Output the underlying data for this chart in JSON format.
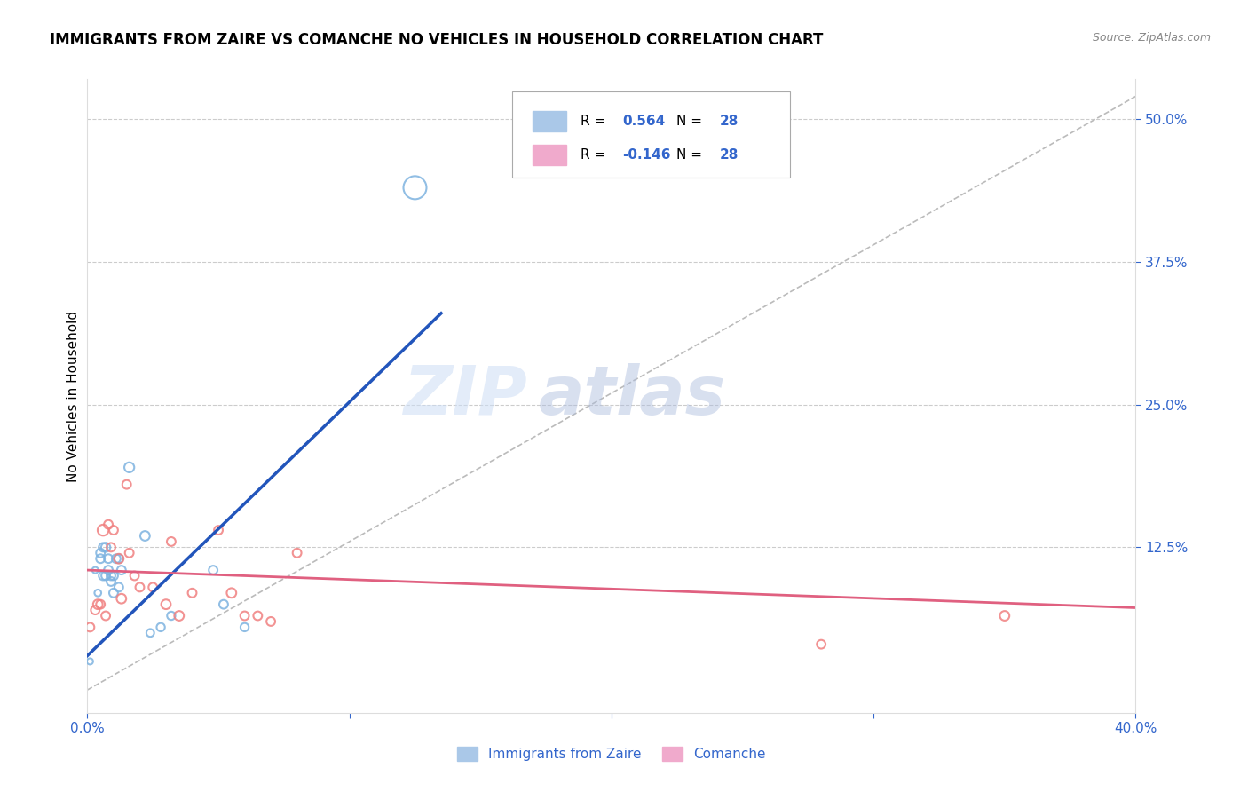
{
  "title": "IMMIGRANTS FROM ZAIRE VS COMANCHE NO VEHICLES IN HOUSEHOLD CORRELATION CHART",
  "source": "Source: ZipAtlas.com",
  "ylabel": "No Vehicles in Household",
  "ytick_labels": [
    "12.5%",
    "25.0%",
    "37.5%",
    "50.0%"
  ],
  "ytick_vals": [
    0.125,
    0.25,
    0.375,
    0.5
  ],
  "xrange": [
    0.0,
    0.4
  ],
  "yrange": [
    -0.02,
    0.535
  ],
  "legend_label1": "Immigrants from Zaire",
  "legend_label2": "Comanche",
  "blue_scatter_color": "#7EB3E0",
  "pink_scatter_color": "#F08080",
  "blue_line_color": "#2255BB",
  "pink_line_color": "#E06080",
  "grid_color": "#CCCCCC",
  "diag_color": "#BBBBBB",
  "blue_scatter_x": [
    0.001,
    0.003,
    0.004,
    0.005,
    0.005,
    0.006,
    0.006,
    0.007,
    0.007,
    0.008,
    0.008,
    0.009,
    0.009,
    0.01,
    0.01,
    0.011,
    0.012,
    0.012,
    0.013,
    0.016,
    0.022,
    0.024,
    0.028,
    0.032,
    0.048,
    0.052,
    0.06,
    0.125
  ],
  "blue_scatter_y": [
    0.025,
    0.105,
    0.085,
    0.12,
    0.115,
    0.125,
    0.1,
    0.125,
    0.1,
    0.115,
    0.105,
    0.1,
    0.095,
    0.085,
    0.1,
    0.115,
    0.115,
    0.09,
    0.105,
    0.195,
    0.135,
    0.05,
    0.055,
    0.065,
    0.105,
    0.075,
    0.055,
    0.44
  ],
  "blue_scatter_sizes": [
    25,
    25,
    30,
    50,
    50,
    50,
    50,
    55,
    50,
    50,
    50,
    50,
    50,
    50,
    50,
    50,
    50,
    50,
    50,
    65,
    60,
    40,
    45,
    45,
    50,
    50,
    45,
    350
  ],
  "pink_scatter_x": [
    0.001,
    0.003,
    0.004,
    0.005,
    0.006,
    0.007,
    0.008,
    0.009,
    0.01,
    0.012,
    0.013,
    0.015,
    0.016,
    0.018,
    0.02,
    0.025,
    0.03,
    0.032,
    0.035,
    0.04,
    0.05,
    0.055,
    0.06,
    0.065,
    0.07,
    0.08,
    0.28,
    0.35
  ],
  "pink_scatter_y": [
    0.055,
    0.07,
    0.075,
    0.075,
    0.14,
    0.065,
    0.145,
    0.125,
    0.14,
    0.115,
    0.08,
    0.18,
    0.12,
    0.1,
    0.09,
    0.09,
    0.075,
    0.13,
    0.065,
    0.085,
    0.14,
    0.085,
    0.065,
    0.065,
    0.06,
    0.12,
    0.04,
    0.065
  ],
  "pink_scatter_sizes": [
    50,
    50,
    60,
    50,
    80,
    50,
    50,
    50,
    50,
    60,
    60,
    50,
    50,
    50,
    50,
    50,
    60,
    50,
    60,
    50,
    50,
    60,
    50,
    50,
    50,
    50,
    50,
    60
  ],
  "blue_trend_x": [
    0.0,
    0.135
  ],
  "blue_trend_y": [
    0.03,
    0.33
  ],
  "pink_trend_x": [
    0.0,
    0.4
  ],
  "pink_trend_y": [
    0.105,
    0.072
  ],
  "diag_line_x": [
    0.0,
    0.4
  ],
  "diag_line_y": [
    0.0,
    0.52
  ],
  "watermark1": "ZIP",
  "watermark2": "atlas"
}
